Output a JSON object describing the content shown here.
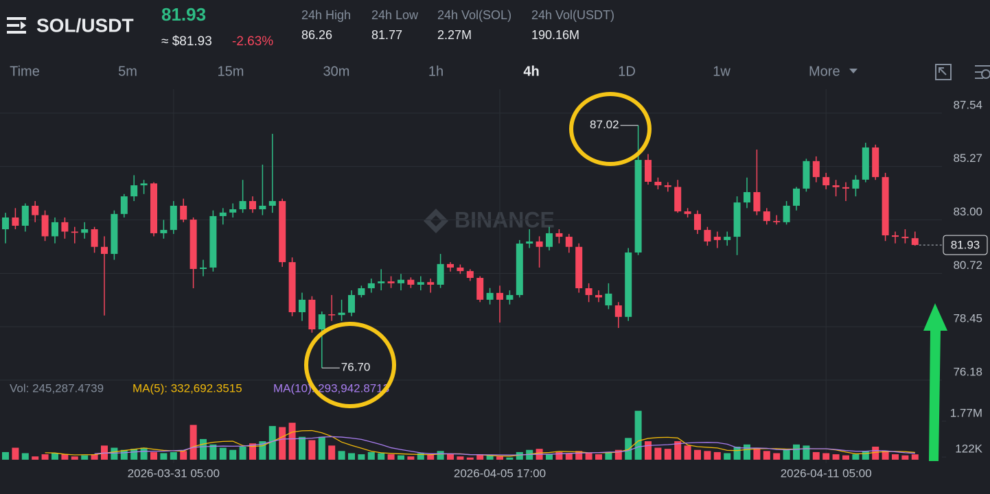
{
  "header": {
    "pair": "SOL/USDT",
    "price": "81.93",
    "price_usd": "≈ $81.93",
    "change": "-2.63%",
    "stats": [
      {
        "label": "24h High",
        "value": "86.26"
      },
      {
        "label": "24h Low",
        "value": "81.77"
      },
      {
        "label": "24h Vol(SOL)",
        "value": "2.27M"
      },
      {
        "label": "24h Vol(USDT)",
        "value": "190.16M"
      }
    ]
  },
  "toolbar": {
    "intervals": [
      "Time",
      "5m",
      "15m",
      "30m",
      "1h",
      "4h",
      "1D",
      "1w"
    ],
    "active": "4h",
    "more": "More"
  },
  "chart_data": {
    "type": "candlestick",
    "watermark": "BINANCE",
    "categories": [
      null,
      null,
      null,
      null,
      null,
      null,
      null,
      null,
      null,
      null,
      null,
      null,
      null,
      null,
      null,
      null,
      null,
      "2026-03-31 05:00",
      null,
      null,
      null,
      null,
      null,
      null,
      null,
      null,
      null,
      null,
      null,
      null,
      null,
      null,
      null,
      null,
      null,
      null,
      null,
      null,
      null,
      null,
      null,
      null,
      null,
      null,
      null,
      null,
      null,
      null,
      null,
      null,
      "2026-04-05 17:00",
      null,
      null,
      null,
      null,
      null,
      null,
      null,
      null,
      null,
      null,
      null,
      null,
      null,
      null,
      null,
      null,
      null,
      null,
      null,
      null,
      null,
      null,
      null,
      null,
      null,
      null,
      null,
      null,
      null,
      null,
      null,
      null,
      "2026-04-11 05:00",
      null,
      null,
      null,
      null,
      null,
      null,
      null,
      null,
      null
    ],
    "open": [
      82.6,
      83.1,
      82.75,
      83.6,
      83.2,
      82.3,
      82.9,
      82.5,
      82.45,
      82.6,
      81.85,
      81.55,
      83.25,
      84.0,
      84.47,
      84.55,
      82.43,
      82.57,
      83.6,
      83.01,
      80.91,
      80.97,
      83.16,
      83.31,
      83.45,
      83.8,
      83.45,
      83.6,
      83.8,
      81.2,
      79.07,
      79.6,
      78.34,
      78.98,
      78.95,
      79.05,
      79.8,
      80.09,
      80.3,
      80.38,
      80.3,
      80.45,
      80.24,
      80.35,
      80.24,
      81.12,
      80.97,
      80.82,
      80.53,
      79.6,
      79.89,
      79.6,
      79.8,
      81.99,
      82.08,
      81.85,
      82.43,
      82.28,
      81.85,
      80.09,
      79.8,
      79.36,
      79.36,
      78.87,
      81.61,
      85.55,
      84.62,
      84.47,
      84.4,
      83.36,
      83.25,
      82.57,
      82.28,
      82.14,
      82.28,
      83.74,
      84.18,
      83.36,
      82.95,
      82.9,
      83.6,
      84.33,
      85.5,
      84.82,
      84.47,
      84.39,
      84.33,
      84.71,
      86.08,
      84.82,
      82.34,
      82.28,
      82.22
    ],
    "high": [
      83.3,
      83.5,
      83.7,
      83.8,
      83.4,
      83.1,
      83.1,
      82.7,
      82.9,
      82.7,
      82.3,
      83.4,
      84.1,
      84.9,
      84.7,
      84.6,
      83.0,
      83.8,
      83.9,
      83.1,
      81.3,
      83.4,
      83.5,
      83.7,
      84.7,
      84.0,
      85.35,
      86.66,
      83.9,
      81.4,
      79.9,
      79.75,
      79.1,
      79.8,
      79.6,
      80.0,
      80.2,
      80.5,
      80.9,
      80.6,
      80.7,
      80.55,
      80.6,
      80.5,
      81.55,
      81.2,
      81.1,
      80.9,
      80.6,
      80.1,
      80.2,
      80.0,
      82.14,
      82.6,
      82.3,
      82.7,
      82.6,
      82.4,
      82.0,
      80.3,
      80.0,
      80.3,
      79.5,
      81.8,
      87.02,
      85.8,
      84.8,
      84.6,
      84.7,
      83.5,
      83.4,
      82.7,
      82.5,
      82.5,
      84.0,
      84.8,
      85.99,
      83.5,
      83.2,
      83.8,
      84.4,
      85.6,
      85.7,
      85.0,
      84.7,
      84.6,
      84.9,
      86.28,
      86.2,
      85.0,
      82.5,
      82.6,
      82.5
    ],
    "low": [
      82.0,
      82.6,
      82.5,
      82.9,
      82.1,
      82.0,
      82.2,
      82.0,
      82.2,
      81.6,
      78.93,
      81.3,
      83.1,
      83.8,
      84.1,
      82.3,
      82.2,
      82.4,
      82.9,
      80.09,
      80.6,
      80.8,
      82.8,
      83.1,
      83.3,
      83.3,
      83.2,
      83.3,
      81.0,
      78.9,
      78.7,
      78.2,
      76.7,
      78.7,
      78.7,
      78.9,
      79.7,
      79.9,
      80.0,
      80.1,
      80.0,
      80.1,
      80.0,
      79.9,
      80.1,
      80.8,
      80.7,
      80.4,
      79.5,
      79.4,
      78.63,
      79.4,
      79.7,
      81.8,
      80.97,
      81.7,
      82.0,
      81.6,
      79.9,
      79.5,
      79.5,
      79.2,
      78.4,
      78.7,
      81.5,
      84.5,
      84.3,
      84.2,
      83.3,
      83.1,
      82.4,
      81.9,
      81.8,
      81.9,
      81.5,
      83.5,
      83.2,
      82.8,
      82.8,
      82.8,
      83.4,
      84.2,
      84.6,
      84.3,
      84.0,
      83.8,
      84.0,
      84.6,
      84.7,
      82.1,
      82.0,
      82.0,
      81.9
    ],
    "close": [
      83.1,
      82.75,
      83.6,
      83.2,
      82.3,
      82.9,
      82.5,
      82.45,
      82.6,
      81.85,
      81.55,
      83.25,
      84.0,
      84.47,
      84.55,
      82.43,
      82.57,
      83.6,
      83.01,
      80.91,
      80.97,
      83.16,
      83.31,
      83.45,
      83.8,
      83.45,
      83.6,
      83.8,
      81.2,
      79.07,
      79.6,
      78.34,
      78.98,
      78.95,
      79.05,
      79.8,
      80.09,
      80.3,
      80.38,
      80.3,
      80.45,
      80.24,
      80.35,
      80.24,
      81.12,
      80.97,
      80.82,
      80.53,
      79.6,
      79.89,
      79.6,
      79.8,
      81.99,
      82.08,
      81.85,
      82.43,
      82.28,
      81.85,
      80.09,
      79.8,
      79.7,
      79.86,
      78.87,
      81.61,
      85.55,
      84.62,
      84.47,
      84.4,
      83.36,
      83.25,
      82.57,
      82.08,
      82.14,
      82.28,
      83.74,
      84.18,
      83.36,
      82.95,
      82.9,
      83.6,
      84.33,
      85.5,
      84.82,
      84.47,
      84.39,
      84.33,
      84.71,
      86.08,
      84.82,
      82.34,
      82.28,
      82.22,
      81.93
    ],
    "volume": [
      350000,
      550000,
      300000,
      150000,
      250000,
      300000,
      250000,
      150000,
      200000,
      250000,
      650000,
      550000,
      450000,
      500000,
      550000,
      350000,
      300000,
      350000,
      400000,
      1600000,
      950000,
      700000,
      550000,
      450000,
      600000,
      750000,
      850000,
      1550000,
      1500000,
      1700000,
      1050000,
      900000,
      1050000,
      650000,
      400000,
      300000,
      250000,
      350000,
      300000,
      250000,
      200000,
      150000,
      300000,
      250000,
      400000,
      250000,
      150000,
      100000,
      250000,
      200000,
      150000,
      100000,
      350000,
      450000,
      500000,
      250000,
      350000,
      300000,
      400000,
      300000,
      250000,
      350000,
      450000,
      1000000,
      2250000,
      850000,
      550000,
      500000,
      850000,
      650000,
      450000,
      400000,
      350000,
      300000,
      600000,
      700000,
      550000,
      400000,
      300000,
      500000,
      700000,
      650000,
      350000,
      300000,
      250000,
      200000,
      250000,
      400000,
      600000,
      400000,
      250000,
      200000,
      245287.4739
    ],
    "ma5": [
      null,
      null,
      null,
      null,
      320000,
      310000,
      250000,
      220000,
      230000,
      230000,
      300000,
      360000,
      420000,
      480000,
      540000,
      480000,
      430000,
      410000,
      390000,
      600000,
      720000,
      800000,
      840000,
      850000,
      650000,
      610000,
      640000,
      840000,
      1050000,
      1270000,
      1330000,
      1340000,
      1240000,
      1070000,
      810000,
      660000,
      530000,
      390000,
      320000,
      290000,
      270000,
      250000,
      240000,
      230000,
      260000,
      270000,
      270000,
      230000,
      230000,
      190000,
      170000,
      160000,
      210000,
      250000,
      310000,
      330000,
      380000,
      370000,
      360000,
      320000,
      320000,
      320000,
      350000,
      470000,
      860000,
      980000,
      1020000,
      1030000,
      1000000,
      680000,
      600000,
      570000,
      540000,
      430000,
      420000,
      470000,
      500000,
      510000,
      510000,
      490000,
      490000,
      510000,
      500000,
      500000,
      450000,
      350000,
      270000,
      280000,
      340000,
      370000,
      380000,
      370000,
      332692.3515
    ],
    "ma10": [
      null,
      null,
      null,
      null,
      null,
      null,
      null,
      null,
      null,
      275000,
      305000,
      305000,
      320000,
      355000,
      385000,
      390000,
      395000,
      415000,
      435000,
      570000,
      600000,
      615000,
      625000,
      620000,
      625000,
      665000,
      720000,
      840000,
      950000,
      960000,
      970000,
      990000,
      1040000,
      1060000,
      1040000,
      995000,
      935000,
      815000,
      695000,
      550000,
      465000,
      390000,
      315000,
      275000,
      275000,
      270000,
      260000,
      235000,
      230000,
      225000,
      220000,
      215000,
      220000,
      240000,
      250000,
      250000,
      270000,
      290000,
      305000,
      315000,
      325000,
      350000,
      360000,
      415000,
      590000,
      650000,
      670000,
      690000,
      735000,
      770000,
      790000,
      795000,
      785000,
      715000,
      550000,
      535000,
      535000,
      525000,
      470000,
      455000,
      480000,
      505000,
      505000,
      505000,
      470000,
      420000,
      390000,
      390000,
      420000,
      410000,
      365000,
      320000,
      293942.8713
    ],
    "up_color": "#2ebd85",
    "down_color": "#f6465d",
    "ma5_color": "#f0b90b",
    "ma10_color": "#a97ef0",
    "volume_legend": [
      "Vol: 245,287.4739",
      "MA(5): 332,692.3515",
      "MA(10): 293,942.8713"
    ],
    "ylim": [
      76.18,
      88.56
    ],
    "yticks": [
      87.54,
      85.27,
      {
        "value": 83,
        "label": "83.00"
      },
      80.72,
      78.45,
      76.18
    ],
    "vlim": [
      0,
      3630000
    ],
    "vticks": [
      {
        "value": 1770000,
        "label": "1.77M"
      },
      {
        "value": 122000,
        "label": "122K"
      }
    ],
    "max_label": {
      "value": 87.02,
      "label": "87.02"
    },
    "min_label": {
      "value": 76.7,
      "label": "76.70"
    },
    "grid": true
  }
}
